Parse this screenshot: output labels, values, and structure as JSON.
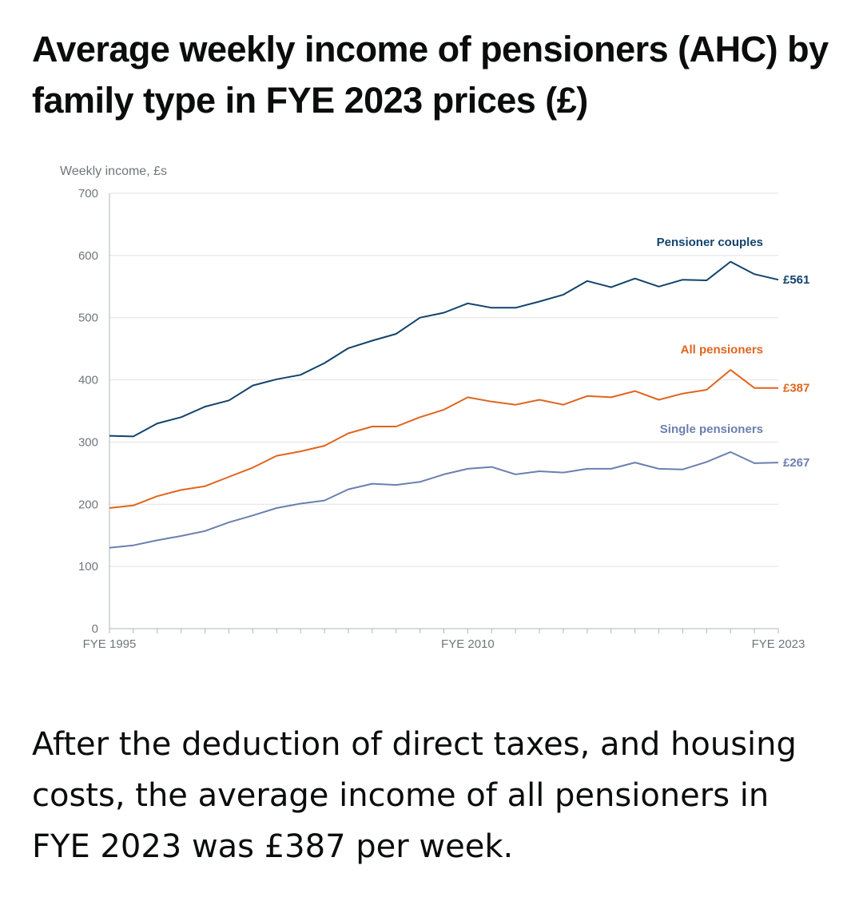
{
  "page": {
    "title": "Average weekly income of pensioners (AHC) by family type in FYE 2023 prices (£)",
    "summary": "After the deduction of direct taxes, and housing costs, the average income of all pensioners in FYE 2023 was £387 per week."
  },
  "chart_data": {
    "type": "line",
    "title": "Average weekly income of pensioners (AHC) by family type in FYE 2023 prices (£)",
    "ylabel": "Weekly income, £s",
    "xlabel": "",
    "ylim": [
      0,
      700
    ],
    "yticks": [
      0,
      100,
      200,
      300,
      400,
      500,
      600,
      700
    ],
    "x": [
      1995,
      1996,
      1997,
      1998,
      1999,
      2000,
      2001,
      2002,
      2003,
      2004,
      2005,
      2006,
      2007,
      2008,
      2009,
      2010,
      2011,
      2012,
      2013,
      2014,
      2015,
      2016,
      2017,
      2018,
      2019,
      2020,
      2021,
      2022,
      2023
    ],
    "xtick_labels": [
      {
        "x": 1995,
        "label": "FYE 1995"
      },
      {
        "x": 2010,
        "label": "FYE 2010"
      },
      {
        "x": 2023,
        "label": "FYE 2023"
      }
    ],
    "grid": true,
    "series": [
      {
        "name": "Pensioner couples",
        "color": "#12436d",
        "end_label": "£561",
        "values": [
          310,
          309,
          330,
          340,
          357,
          367,
          391,
          401,
          408,
          427,
          451,
          463,
          474,
          500,
          508,
          523,
          516,
          516,
          526,
          537,
          559,
          549,
          563,
          550,
          561,
          560,
          590,
          570,
          561
        ]
      },
      {
        "name": "All pensioners",
        "color": "#e0651d",
        "end_label": "£387",
        "values": [
          194,
          198,
          213,
          223,
          229,
          244,
          259,
          278,
          285,
          294,
          314,
          325,
          325,
          340,
          352,
          372,
          365,
          360,
          368,
          360,
          374,
          372,
          382,
          368,
          378,
          384,
          416,
          387,
          387
        ]
      },
      {
        "name": "Single pensioners",
        "color": "#6b7fb0",
        "end_label": "£267",
        "values": [
          130,
          134,
          142,
          149,
          157,
          171,
          182,
          194,
          201,
          206,
          224,
          233,
          231,
          236,
          248,
          257,
          260,
          248,
          253,
          251,
          257,
          257,
          267,
          257,
          256,
          268,
          284,
          266,
          267
        ]
      }
    ]
  }
}
